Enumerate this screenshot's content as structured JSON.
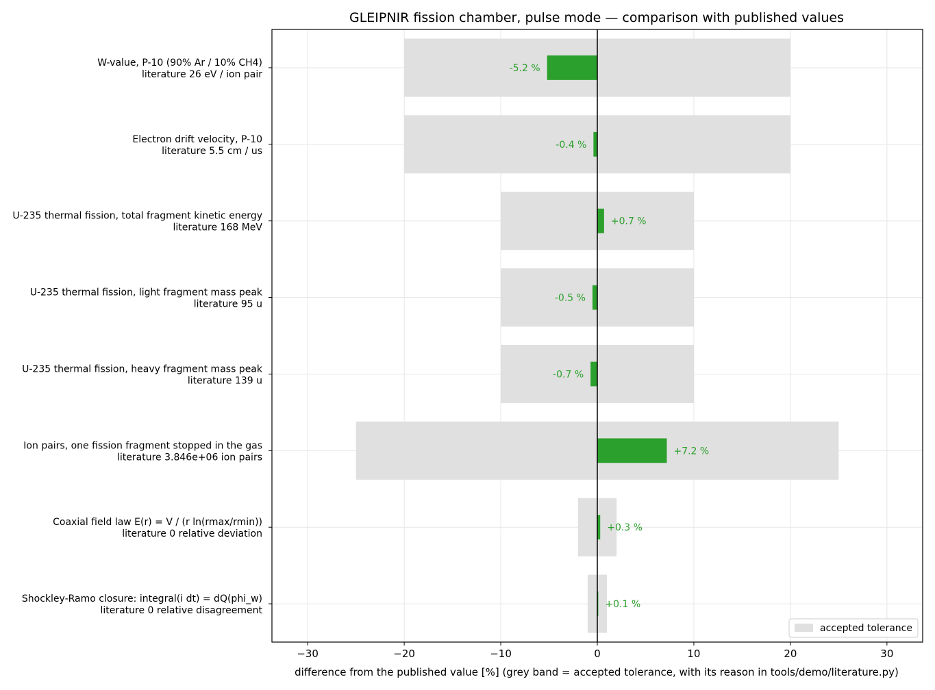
{
  "chart_data": {
    "type": "bar",
    "orientation": "horizontal",
    "title": "GLEIPNIR fission chamber, pulse mode — comparison with published values",
    "xlabel": "difference from the published value [%]   (grey band = accepted tolerance, with its reason in tools/demo/literature.py)",
    "ylabel": "",
    "xlim": [
      -33.7,
      33.7
    ],
    "xticks": [
      -30,
      -20,
      -10,
      0,
      10,
      20,
      30
    ],
    "xtick_labels": [
      "−30",
      "−20",
      "−10",
      "0",
      "10",
      "20",
      "30"
    ],
    "grid": true,
    "legend": {
      "placement": "lower-right",
      "entries": [
        "accepted tolerance"
      ]
    },
    "colors": {
      "bar": "#2ca02c",
      "band": "#e0e0e0",
      "label": "#2ca02c",
      "zero_line": "#000000",
      "grid": "#e6e6e6"
    },
    "categories": [
      {
        "name": "W-value, P-10 (90% Ar / 10% CH4)",
        "literature": "literature 26 eV / ion pair",
        "value": -5.2,
        "value_label": "-5.2 %",
        "tolerance": 20
      },
      {
        "name": "Electron drift velocity, P-10",
        "literature": "literature 5.5 cm / us",
        "value": -0.4,
        "value_label": "-0.4 %",
        "tolerance": 20
      },
      {
        "name": "U-235 thermal fission, total fragment kinetic energy",
        "literature": "literature 168 MeV",
        "value": 0.7,
        "value_label": "+0.7 %",
        "tolerance": 10
      },
      {
        "name": "U-235 thermal fission, light fragment mass peak",
        "literature": "literature 95 u",
        "value": -0.5,
        "value_label": "-0.5 %",
        "tolerance": 10
      },
      {
        "name": "U-235 thermal fission, heavy fragment mass peak",
        "literature": "literature 139 u",
        "value": -0.7,
        "value_label": "-0.7 %",
        "tolerance": 10
      },
      {
        "name": "Ion pairs, one fission fragment stopped in the gas",
        "literature": "literature 3.846e+06 ion pairs",
        "value": 7.2,
        "value_label": "+7.2 %",
        "tolerance": 25
      },
      {
        "name": "Coaxial field law E(r) = V / (r ln(rmax/rmin))",
        "literature": "literature 0 relative deviation",
        "value": 0.3,
        "value_label": "+0.3 %",
        "tolerance": 2
      },
      {
        "name": "Shockley-Ramo closure: integral(i dt) = dQ(phi_w)",
        "literature": "literature 0 relative disagreement",
        "value": 0.1,
        "value_label": "+0.1 %",
        "tolerance": 1
      }
    ]
  }
}
